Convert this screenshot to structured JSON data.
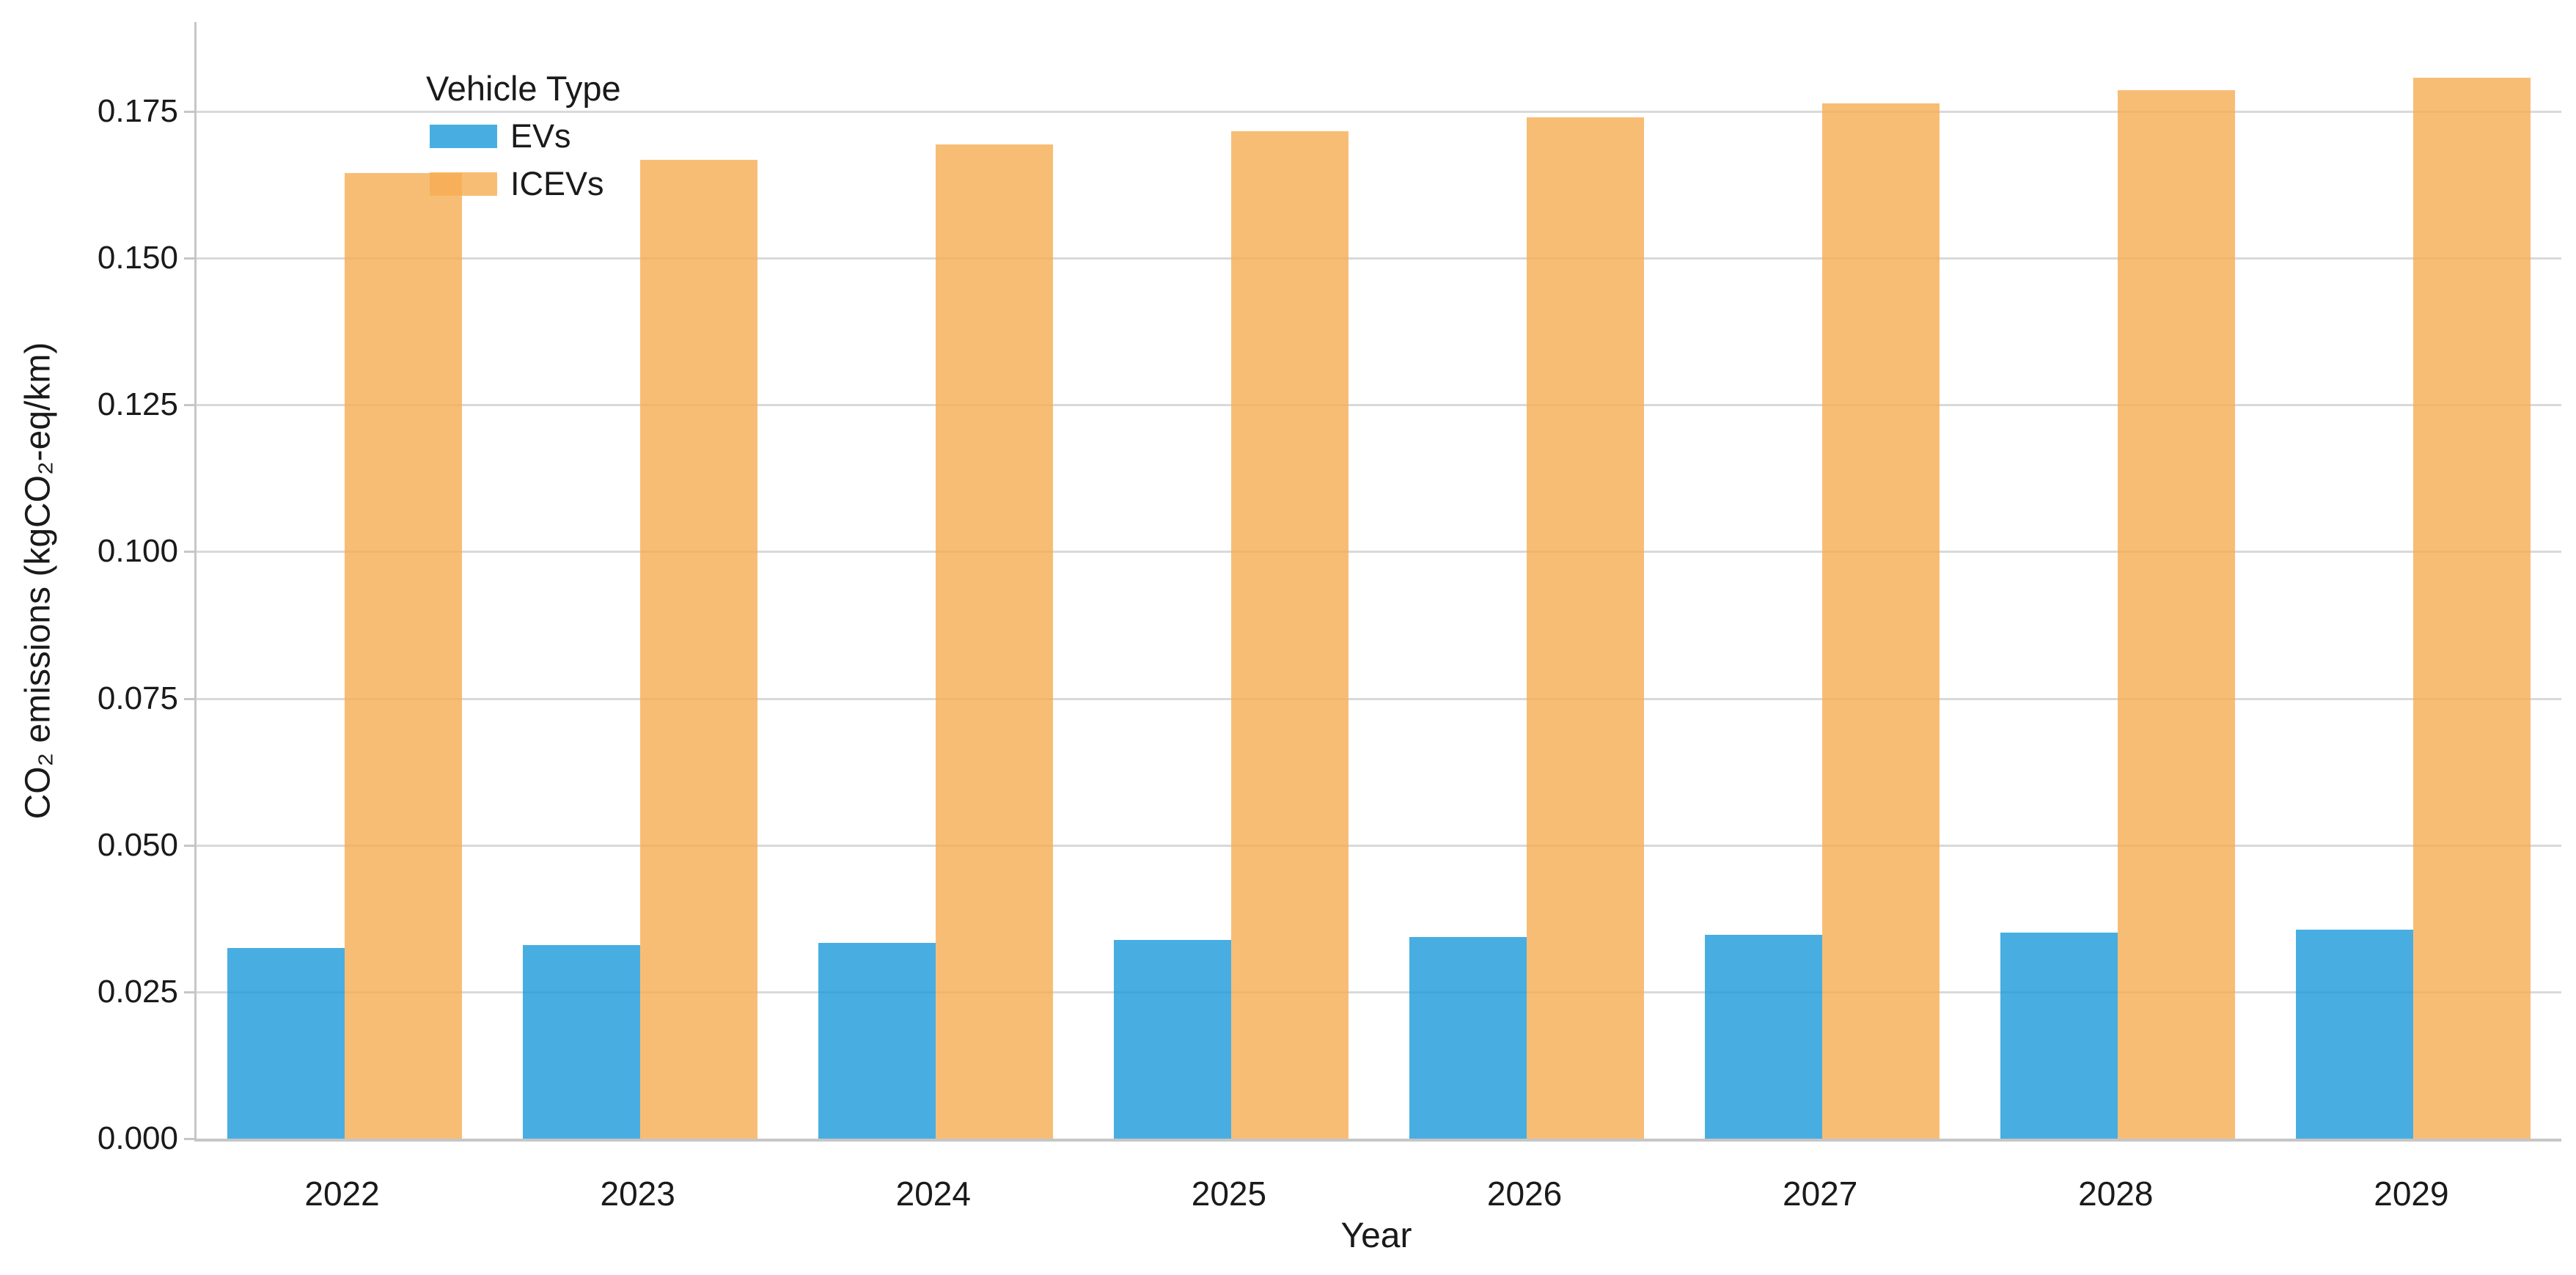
{
  "chart_data": {
    "type": "bar",
    "title": "",
    "xlabel": "Year",
    "ylabel": "CO₂ emissions (kgCO₂-eq/km)",
    "legend_title": "Vehicle Type",
    "legend_position": "upper-left",
    "grid": true,
    "categories": [
      "2022",
      "2023",
      "2024",
      "2025",
      "2026",
      "2027",
      "2028",
      "2029"
    ],
    "series": [
      {
        "name": "EVs",
        "color": "rgba(26,154,219,0.8)",
        "color_hex_on_white": "#48AEE2",
        "values": [
          0.0325,
          0.033,
          0.0334,
          0.0339,
          0.0343,
          0.0347,
          0.0351,
          0.0356
        ]
      },
      {
        "name": "ICEVs",
        "color": "rgba(246,173,83,0.8)",
        "color_hex_on_white": "#F8BD75",
        "values": [
          0.1645,
          0.1668,
          0.1693,
          0.1716,
          0.174,
          0.1763,
          0.1786,
          0.1807
        ]
      }
    ],
    "ylim": [
      0,
      0.19
    ],
    "ytick_step": 0.025,
    "yticks": [
      "0.000",
      "0.025",
      "0.050",
      "0.075",
      "0.100",
      "0.125",
      "0.150",
      "0.175"
    ],
    "colors": {
      "gridline": "#d9d9d9",
      "spine": "#c6c6c6",
      "text": "#1a1a1a",
      "background": "#ffffff"
    }
  }
}
